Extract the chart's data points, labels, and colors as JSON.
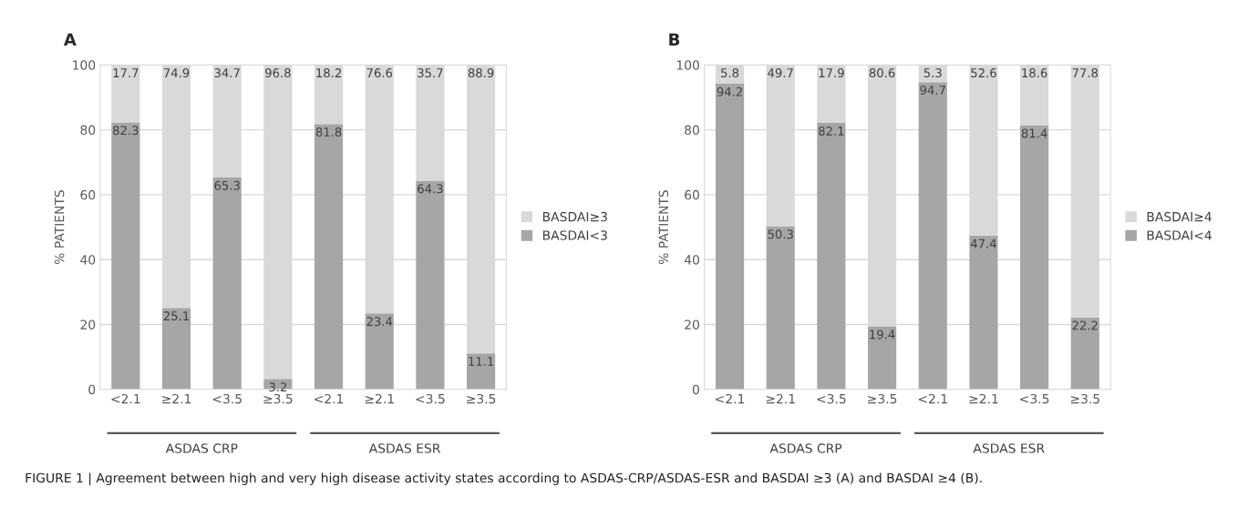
{
  "chart_data": [
    {
      "type": "bar",
      "title": "A",
      "ylabel": "% PATIENTS",
      "categories": [
        "<2.1",
        "≥2.1",
        "<3.5",
        "≥3.5",
        "<2.1",
        "≥2.1",
        "<3.5",
        "≥3.5"
      ],
      "stacked": true,
      "series": [
        {
          "name": "BASDAI<3",
          "color": "#a6a6a6",
          "values": [
            82.3,
            25.1,
            65.3,
            3.2,
            81.8,
            23.4,
            64.3,
            11.1
          ]
        },
        {
          "name": "BASDAI≥3",
          "color": "#d9d9d9",
          "values": [
            17.7,
            74.9,
            34.7,
            96.8,
            18.2,
            76.6,
            35.7,
            88.9
          ]
        }
      ],
      "ylim": [
        0,
        100
      ],
      "yticks": [
        0,
        20,
        40,
        60,
        80,
        100
      ],
      "grid": "y",
      "legend": "right",
      "data_labels": true,
      "annotations": [
        "ASDAS CRP",
        "ASDAS ESR",
        "FIGURE 1 | Agreement between high and very high disease activity states according to ASDAS-CRP/ASDAS-ESR and BASDAI ≥3 (A) and BASDAI ≥4 (B)."
      ]
    },
    {
      "type": "bar",
      "title": "B",
      "ylabel": "% PATIENTS",
      "categories": [
        "<2.1",
        "≥2.1",
        "<3.5",
        "≥3.5",
        "<2.1",
        "≥2.1",
        "<3.5",
        "≥3.5"
      ],
      "stacked": true,
      "series": [
        {
          "name": "BASDAI<4",
          "color": "#a6a6a6",
          "values": [
            94.2,
            50.3,
            82.1,
            19.4,
            94.7,
            47.4,
            81.4,
            22.2
          ]
        },
        {
          "name": "BASDAI≥4",
          "color": "#d9d9d9",
          "values": [
            5.8,
            49.7,
            17.9,
            80.6,
            5.3,
            52.6,
            18.6,
            77.8
          ]
        }
      ],
      "ylim": [
        0,
        100
      ],
      "yticks": [
        0,
        20,
        40,
        60,
        80,
        100
      ],
      "grid": "y",
      "legend": "right",
      "data_labels": true,
      "annotations": [
        "ASDAS CRP",
        "ASDAS ESR"
      ]
    }
  ]
}
